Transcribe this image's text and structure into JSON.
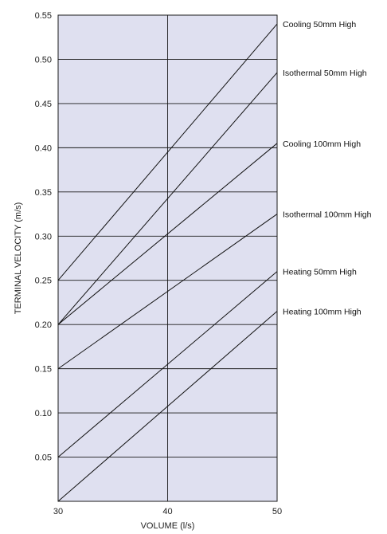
{
  "colors": {
    "plot_background": "#dfe0f0",
    "grid": "#1a1a1a",
    "line": "#111111"
  },
  "chart_data": {
    "type": "line",
    "title": "",
    "xlabel": "VOLUME (l/s)",
    "ylabel": "TERMINAL VELOCITY (m/s)",
    "xlim": [
      30,
      50
    ],
    "ylim": [
      0,
      0.55
    ],
    "x_ticks": [
      "30",
      "40",
      "50"
    ],
    "y_ticks": [
      "0.05",
      "0.10",
      "0.15",
      "0.20",
      "0.25",
      "0.30",
      "0.35",
      "0.40",
      "0.45",
      "0.50",
      "0.55"
    ],
    "grid": true,
    "series": [
      {
        "name": "Cooling 50mm High",
        "x": [
          30,
          50
        ],
        "y": [
          0.25,
          0.54
        ]
      },
      {
        "name": "Isothermal 50mm High",
        "x": [
          30,
          50
        ],
        "y": [
          0.2,
          0.485
        ]
      },
      {
        "name": "Cooling 100mm High",
        "x": [
          30,
          50
        ],
        "y": [
          0.2,
          0.405
        ]
      },
      {
        "name": "Isothermal 100mm High",
        "x": [
          30,
          50
        ],
        "y": [
          0.15,
          0.325
        ]
      },
      {
        "name": "Heating 50mm High",
        "x": [
          30,
          50
        ],
        "y": [
          0.05,
          0.26
        ]
      },
      {
        "name": "Heating 100mm High",
        "x": [
          30,
          50
        ],
        "y": [
          0.0,
          0.215
        ]
      }
    ]
  }
}
